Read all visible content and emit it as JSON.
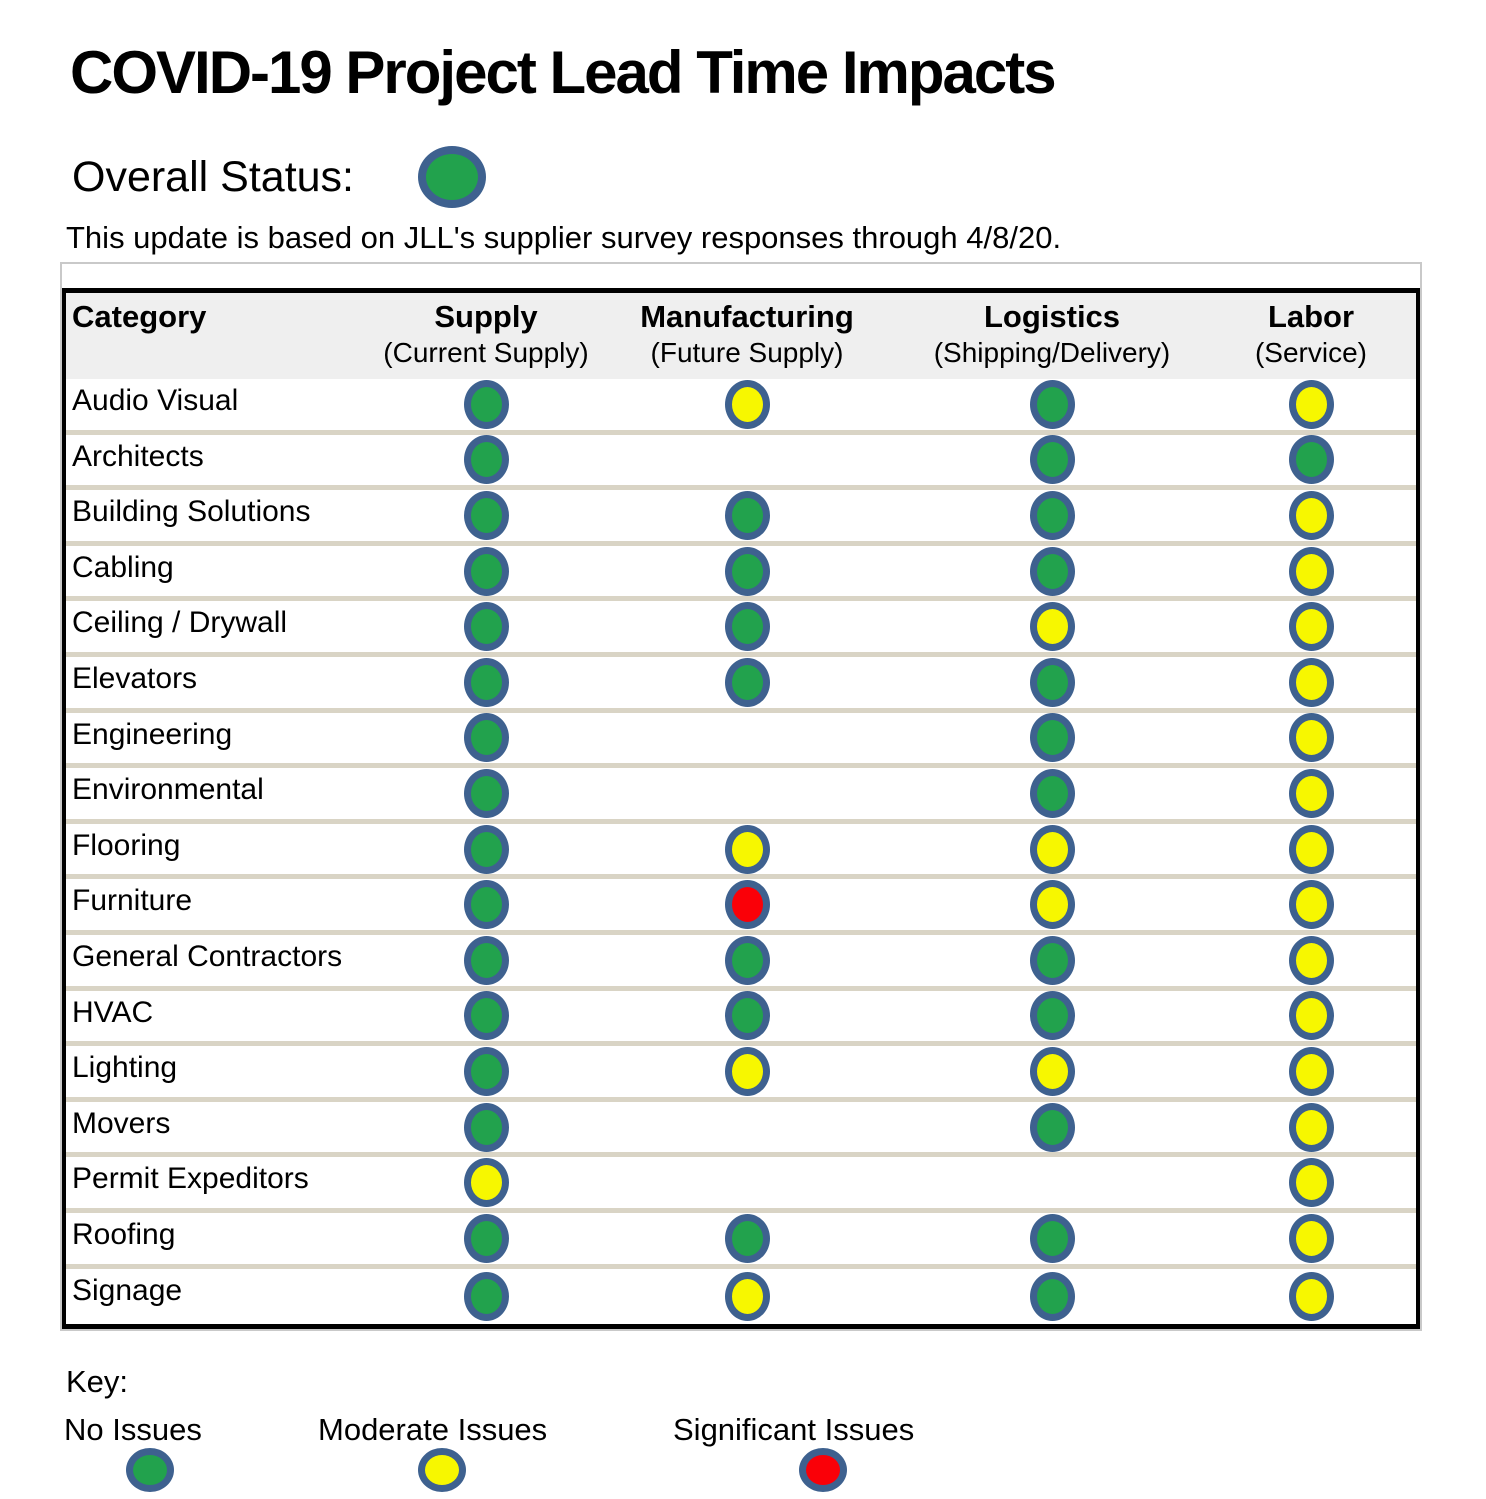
{
  "title": "COVID-19 Project Lead Time Impacts",
  "overall_status": {
    "label": "Overall Status:",
    "value": "green"
  },
  "note": "This update is based on JLL's supplier survey responses through 4/8/20.",
  "table": {
    "columns": [
      {
        "label": "Category",
        "sublabel": ""
      },
      {
        "label": "Supply",
        "sublabel": "(Current Supply)"
      },
      {
        "label": "Manufacturing",
        "sublabel": "(Future Supply)"
      },
      {
        "label": "Logistics",
        "sublabel": "(Shipping/Delivery)"
      },
      {
        "label": "Labor",
        "sublabel": "(Service)"
      }
    ],
    "rows": [
      {
        "category": "Audio Visual",
        "supply": "green",
        "manufacturing": "yellow",
        "logistics": "green",
        "labor": "yellow"
      },
      {
        "category": "Architects",
        "supply": "green",
        "manufacturing": null,
        "logistics": "green",
        "labor": "green"
      },
      {
        "category": "Building Solutions",
        "supply": "green",
        "manufacturing": "green",
        "logistics": "green",
        "labor": "yellow"
      },
      {
        "category": "Cabling",
        "supply": "green",
        "manufacturing": "green",
        "logistics": "green",
        "labor": "yellow"
      },
      {
        "category": "Ceiling / Drywall",
        "supply": "green",
        "manufacturing": "green",
        "logistics": "yellow",
        "labor": "yellow"
      },
      {
        "category": "Elevators",
        "supply": "green",
        "manufacturing": "green",
        "logistics": "green",
        "labor": "yellow"
      },
      {
        "category": "Engineering",
        "supply": "green",
        "manufacturing": null,
        "logistics": "green",
        "labor": "yellow"
      },
      {
        "category": "Environmental",
        "supply": "green",
        "manufacturing": null,
        "logistics": "green",
        "labor": "yellow"
      },
      {
        "category": "Flooring",
        "supply": "green",
        "manufacturing": "yellow",
        "logistics": "yellow",
        "labor": "yellow"
      },
      {
        "category": "Furniture",
        "supply": "green",
        "manufacturing": "red",
        "logistics": "yellow",
        "labor": "yellow"
      },
      {
        "category": "General Contractors",
        "supply": "green",
        "manufacturing": "green",
        "logistics": "green",
        "labor": "yellow"
      },
      {
        "category": "HVAC",
        "supply": "green",
        "manufacturing": "green",
        "logistics": "green",
        "labor": "yellow"
      },
      {
        "category": "Lighting",
        "supply": "green",
        "manufacturing": "yellow",
        "logistics": "yellow",
        "labor": "yellow"
      },
      {
        "category": "Movers",
        "supply": "green",
        "manufacturing": null,
        "logistics": "green",
        "labor": "yellow"
      },
      {
        "category": "Permit Expeditors",
        "supply": "yellow",
        "manufacturing": null,
        "logistics": null,
        "labor": "yellow"
      },
      {
        "category": "Roofing",
        "supply": "green",
        "manufacturing": "green",
        "logistics": "green",
        "labor": "yellow"
      },
      {
        "category": "Signage",
        "supply": "green",
        "manufacturing": "yellow",
        "logistics": "green",
        "labor": "yellow"
      }
    ]
  },
  "key": {
    "label": "Key:",
    "items": [
      {
        "label": "No Issues",
        "color": "green"
      },
      {
        "label": "Moderate Issues",
        "color": "yellow"
      },
      {
        "label": "Significant Issues",
        "color": "red"
      }
    ]
  },
  "colors": {
    "green": "#22A24D",
    "yellow": "#F7F700",
    "red": "#FA0008",
    "ring": "#3E618F"
  },
  "status_meanings": {
    "green": "No Issues",
    "yellow": "Moderate Issues",
    "red": "Significant Issues"
  }
}
